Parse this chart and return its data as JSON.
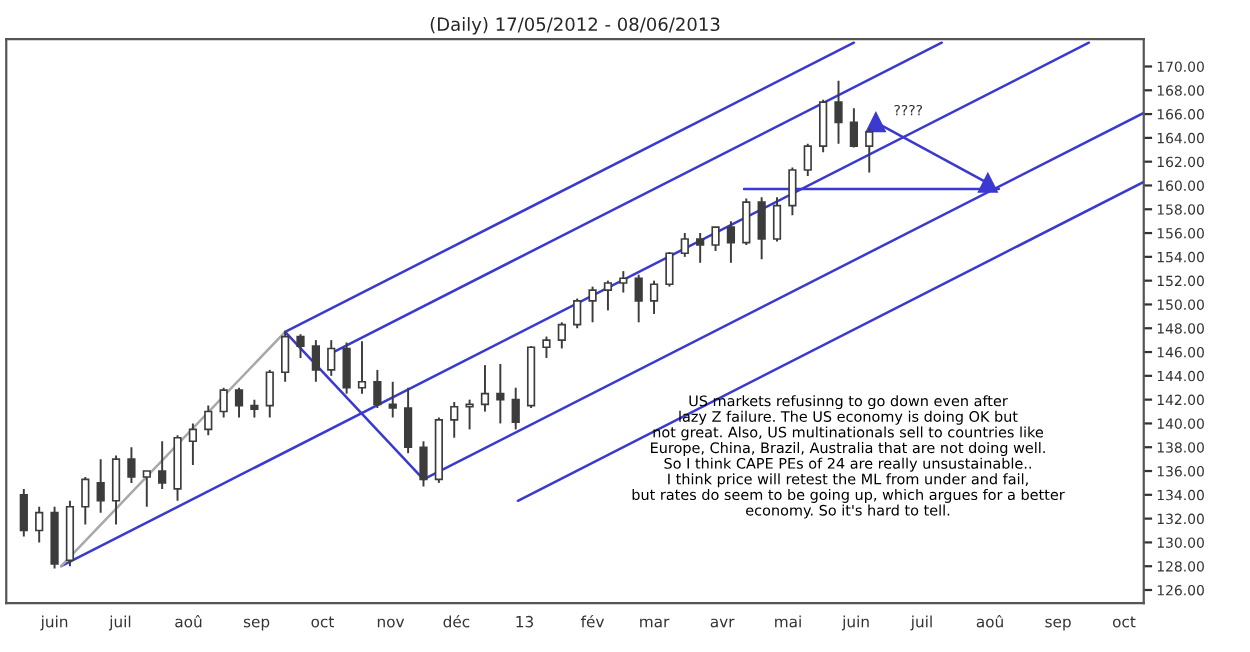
{
  "chart_data": {
    "type": "candlestick",
    "title": "(Daily) 17/05/2012 - 08/06/2013",
    "color": "#3c3c3c",
    "x": [
      "2012-05-18",
      "2012-05-25",
      "2012-06-01",
      "2012-06-08",
      "2012-06-15",
      "2012-06-22",
      "2012-06-29",
      "2012-07-06",
      "2012-07-13",
      "2012-07-20",
      "2012-07-27",
      "2012-08-03",
      "2012-08-10",
      "2012-08-17",
      "2012-08-24",
      "2012-08-31",
      "2012-09-07",
      "2012-09-14",
      "2012-09-21",
      "2012-09-28",
      "2012-10-05",
      "2012-10-12",
      "2012-10-19",
      "2012-10-26",
      "2012-11-02",
      "2012-11-09",
      "2012-11-16",
      "2012-11-23",
      "2012-11-30",
      "2012-12-07",
      "2012-12-14",
      "2012-12-21",
      "2012-12-28",
      "2013-01-04",
      "2013-01-11",
      "2013-01-18",
      "2013-01-25",
      "2013-02-01",
      "2013-02-08",
      "2013-02-15",
      "2013-02-22",
      "2013-03-01",
      "2013-03-08",
      "2013-03-15",
      "2013-03-22",
      "2013-03-29",
      "2013-04-05",
      "2013-04-12",
      "2013-04-19",
      "2013-04-26",
      "2013-05-03",
      "2013-05-10",
      "2013-05-17",
      "2013-05-24",
      "2013-05-31",
      "2013-06-07"
    ],
    "ohlc": [
      [
        134,
        134.5,
        130.5,
        131
      ],
      [
        131,
        133,
        130,
        132.5
      ],
      [
        132.5,
        133,
        127.8,
        128.2
      ],
      [
        128.5,
        133.5,
        128,
        133
      ],
      [
        133,
        135.5,
        131.5,
        135.3
      ],
      [
        135,
        137,
        132.5,
        133.5
      ],
      [
        133.5,
        137.3,
        131.5,
        137
      ],
      [
        137,
        138,
        135,
        135.5
      ],
      [
        135.5,
        136,
        133,
        136
      ],
      [
        136,
        138.5,
        134.5,
        135
      ],
      [
        134.5,
        139,
        133.5,
        138.8
      ],
      [
        138.5,
        140,
        136.5,
        139.5
      ],
      [
        139.5,
        141.5,
        139,
        141
      ],
      [
        141,
        143,
        140.5,
        142.8
      ],
      [
        142.8,
        143,
        140.5,
        141.5
      ],
      [
        141.5,
        142,
        140.5,
        141.2
      ],
      [
        141.5,
        144.5,
        140.5,
        144.3
      ],
      [
        144.3,
        147.7,
        143.5,
        147.3
      ],
      [
        147.3,
        147.5,
        145.5,
        146.5
      ],
      [
        146.5,
        147,
        143.5,
        144.5
      ],
      [
        144.5,
        147,
        144,
        146.3
      ],
      [
        146.3,
        146.8,
        142.5,
        143
      ],
      [
        143,
        146.9,
        142.5,
        143.5
      ],
      [
        143.5,
        144.5,
        141.3,
        141.6
      ],
      [
        141.6,
        143.5,
        140.5,
        141.3
      ],
      [
        141.3,
        143,
        137.5,
        138
      ],
      [
        138,
        138.5,
        134.7,
        135.3
      ],
      [
        135.3,
        140.5,
        135,
        140.3
      ],
      [
        140.3,
        141.8,
        138.8,
        141.4
      ],
      [
        141.4,
        142,
        139.5,
        141.6
      ],
      [
        141.6,
        144.9,
        141,
        142.5
      ],
      [
        142.5,
        145,
        140,
        142
      ],
      [
        142,
        143,
        139.5,
        140.1
      ],
      [
        141.5,
        146.5,
        141.3,
        146.4
      ],
      [
        146.4,
        147.3,
        145.5,
        147
      ],
      [
        147,
        148.5,
        146.3,
        148.3
      ],
      [
        148.3,
        150.5,
        148,
        150.3
      ],
      [
        150.3,
        151.5,
        148.5,
        151.2
      ],
      [
        151.2,
        152,
        149.5,
        151.8
      ],
      [
        151.8,
        152.8,
        151,
        152.2
      ],
      [
        152.2,
        152.5,
        148.5,
        150.3
      ],
      [
        150.3,
        152,
        149.2,
        151.7
      ],
      [
        151.7,
        154.4,
        151.5,
        154.3
      ],
      [
        154.3,
        156,
        154,
        155.5
      ],
      [
        155.5,
        156,
        153.5,
        155
      ],
      [
        155,
        156.5,
        154.5,
        156.5
      ],
      [
        156.5,
        157,
        153.5,
        155.2
      ],
      [
        155.2,
        158.9,
        155,
        158.6
      ],
      [
        158.6,
        159,
        153.8,
        155.5
      ],
      [
        155.5,
        159,
        155.3,
        158.3
      ],
      [
        158.3,
        161.5,
        157.5,
        161.3
      ],
      [
        161.3,
        163.5,
        160.8,
        163.3
      ],
      [
        163.3,
        167.2,
        162.8,
        167
      ],
      [
        167,
        168.8,
        163.5,
        165.3
      ],
      [
        165.3,
        166.5,
        163.2,
        163.3
      ],
      [
        163.3,
        164.8,
        161.1,
        164.5
      ]
    ],
    "series": [
      {
        "type": "line",
        "color": "#3a3ad0",
        "x": [
          "2012-09-14",
          "2013-05-31"
        ],
        "values": [
          147.7,
          172.0
        ]
      },
      {
        "type": "line",
        "color": "#3a3ad0",
        "x": [
          "2012-10-06",
          "2013-07-10"
        ],
        "values": [
          146.0,
          172.0
        ]
      },
      {
        "type": "line",
        "color": "#3a3ad0",
        "x": [
          "2012-06-04",
          "2013-09-15"
        ],
        "values": [
          128.0,
          172.0
        ]
      },
      {
        "type": "line",
        "color": "#3a3ad0",
        "x": [
          "2012-11-16",
          "2013-10-10"
        ],
        "values": [
          135.3,
          166.1
        ]
      },
      {
        "type": "line",
        "color": "#3a3ad0",
        "x": [
          "2012-12-29",
          "2013-10-10"
        ],
        "values": [
          133.5,
          160.3
        ]
      },
      {
        "type": "line",
        "color": "#a8a8a8",
        "x": [
          "2012-06-04",
          "2012-09-14"
        ],
        "values": [
          128.0,
          147.7
        ]
      },
      {
        "type": "line",
        "color": "#3a3ad0",
        "x": [
          "2012-09-14",
          "2012-11-16"
        ],
        "values": [
          147.7,
          135.3
        ]
      },
      {
        "type": "line",
        "color": "#3a3ad0",
        "x": [
          "2013-04-11",
          "2013-08-05"
        ],
        "values": [
          159.7,
          159.7
        ]
      },
      {
        "type": "line",
        "color": "#3a3ad0",
        "marker": "triangle",
        "x": [
          "2013-06-10",
          "2013-07-31"
        ],
        "values": [
          165.3,
          160.2
        ]
      }
    ],
    "annotations": [
      "????",
      "US markets refusinng to go down even after\nlazy Z failure. The US economy is doing OK but\nnot great. Also, US multinationals sell to countries like\nEurope, China, Brazil, Australia that are not doing well.\nSo I think CAPE PEs of 24 are really unsustainable..\nI think price will retest the ML from under and fail,\nbut rates do seem to be going up, which argues for a better\neconomy. So it's hard to tell."
    ],
    "xlim": [
      "2012-05-10",
      "2013-10-10"
    ],
    "xticks": [
      {
        "value": "2012-06-01",
        "label": "juin"
      },
      {
        "value": "2012-07-01",
        "label": "juil"
      },
      {
        "value": "2012-08-01",
        "label": "aoû"
      },
      {
        "value": "2012-09-01",
        "label": "sep"
      },
      {
        "value": "2012-10-01",
        "label": "oct"
      },
      {
        "value": "2012-11-01",
        "label": "nov"
      },
      {
        "value": "2012-12-01",
        "label": "déc"
      },
      {
        "value": "2013-01-01",
        "label": "13"
      },
      {
        "value": "2013-02-01",
        "label": "fév"
      },
      {
        "value": "2013-03-01",
        "label": "mar"
      },
      {
        "value": "2013-04-01",
        "label": "avr"
      },
      {
        "value": "2013-05-01",
        "label": "mai"
      },
      {
        "value": "2013-06-01",
        "label": "juin"
      },
      {
        "value": "2013-07-01",
        "label": "juil"
      },
      {
        "value": "2013-08-01",
        "label": "aoû"
      },
      {
        "value": "2013-09-01",
        "label": "sep"
      },
      {
        "value": "2013-10-01",
        "label": "oct"
      }
    ],
    "ylim": [
      124.9,
      172.3
    ],
    "yticks": [
      {
        "value": 126,
        "label": "126.00"
      },
      {
        "value": 128,
        "label": "128.00"
      },
      {
        "value": 130,
        "label": "130.00"
      },
      {
        "value": 132,
        "label": "132.00"
      },
      {
        "value": 134,
        "label": "134.00"
      },
      {
        "value": 136,
        "label": "136.00"
      },
      {
        "value": 138,
        "label": "138.00"
      },
      {
        "value": 140,
        "label": "140.00"
      },
      {
        "value": 142,
        "label": "142.00"
      },
      {
        "value": 144,
        "label": "144.00"
      },
      {
        "value": 146,
        "label": "146.00"
      },
      {
        "value": 148,
        "label": "148.00"
      },
      {
        "value": 150,
        "label": "150.00"
      },
      {
        "value": 152,
        "label": "152.00"
      },
      {
        "value": 154,
        "label": "154.00"
      },
      {
        "value": 156,
        "label": "156.00"
      },
      {
        "value": 158,
        "label": "158.00"
      },
      {
        "value": 160,
        "label": "160.00"
      },
      {
        "value": 162,
        "label": "162.00"
      },
      {
        "value": 164,
        "label": "164.00"
      },
      {
        "value": 166,
        "label": "166.00"
      },
      {
        "value": 168,
        "label": "168.00"
      },
      {
        "value": 170,
        "label": "170.00"
      }
    ],
    "grid": false
  }
}
